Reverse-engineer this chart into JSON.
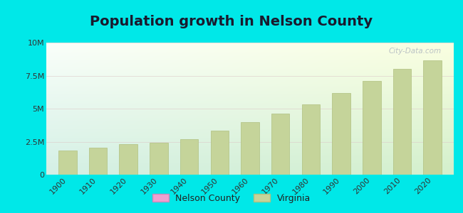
{
  "title": "Population growth in Nelson County",
  "years": [
    1900,
    1910,
    1920,
    1930,
    1940,
    1950,
    1960,
    1970,
    1980,
    1990,
    2000,
    2010,
    2020
  ],
  "virginia_values": [
    1854184,
    2061612,
    2309187,
    2421851,
    2677773,
    3318680,
    3966949,
    4648494,
    5346818,
    6187358,
    7078515,
    8001024,
    8631393
  ],
  "bar_color": "#c5d49a",
  "bar_edge_color": "#b0c080",
  "background_color": "#00e8e8",
  "ylim": [
    0,
    10000000
  ],
  "yticks": [
    0,
    2500000,
    5000000,
    7500000,
    10000000
  ],
  "ytick_labels": [
    "0",
    "2.5M",
    "5M",
    "7.5M",
    "10M"
  ],
  "watermark": "City-Data.com",
  "legend_nelson_color": "#f0a0d0",
  "legend_virginia_color": "#c5d49a",
  "title_fontsize": 14,
  "tick_fontsize": 8,
  "plot_bg_colors": [
    "#d0f0e8",
    "#eef8ee",
    "#f8fffa"
  ],
  "grid_color": "#ddc8c8",
  "title_color": "#1a1a2e"
}
